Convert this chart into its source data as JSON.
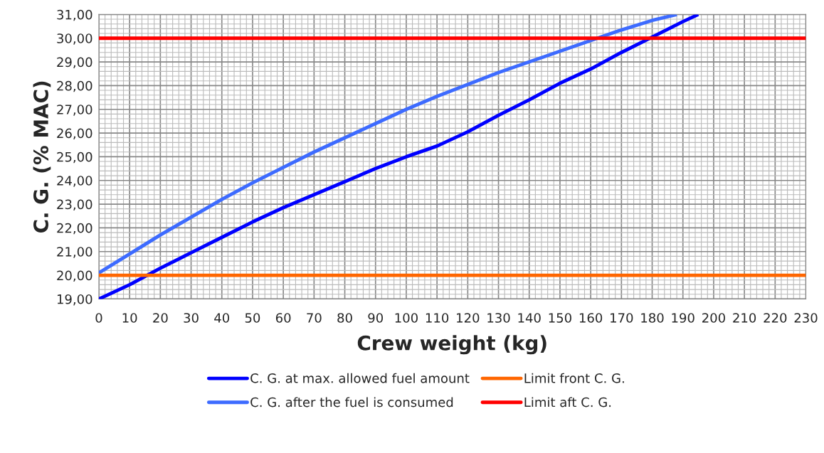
{
  "chart_data": {
    "type": "line",
    "xlabel": "Crew weight (kg)",
    "ylabel": "C. G. (% MAC)",
    "xlim": [
      0,
      230
    ],
    "xticks": [
      0,
      10,
      20,
      30,
      40,
      50,
      60,
      70,
      80,
      90,
      100,
      110,
      120,
      130,
      140,
      150,
      160,
      170,
      180,
      190,
      200,
      210,
      220,
      230
    ],
    "ylim": [
      19,
      31
    ],
    "yticks": [
      {
        "value": 19,
        "label": "19,00"
      },
      {
        "value": 20,
        "label": "20,00"
      },
      {
        "value": 21,
        "label": "21,00"
      },
      {
        "value": 22,
        "label": "22,00"
      },
      {
        "value": 23,
        "label": "23,00"
      },
      {
        "value": 24,
        "label": "24,00"
      },
      {
        "value": 25,
        "label": "25,00"
      },
      {
        "value": 26,
        "label": "26,00"
      },
      {
        "value": 27,
        "label": "27,00"
      },
      {
        "value": 28,
        "label": "28,00"
      },
      {
        "value": 29,
        "label": "29,00"
      },
      {
        "value": 30,
        "label": "30,00"
      },
      {
        "value": 31,
        "label": "31,00"
      }
    ],
    "grid": true,
    "legend": "bottom",
    "marker": "none",
    "line_style": "solid",
    "series": [
      {
        "name": "C. G. at max. allowed fuel amount",
        "color": "#0000ff",
        "x": [
          0,
          10,
          20,
          30,
          40,
          50,
          60,
          70,
          80,
          90,
          100,
          110,
          120,
          130,
          140,
          150,
          160,
          170,
          180,
          190,
          195
        ],
        "values": [
          19.0,
          19.6,
          20.3,
          20.95,
          21.6,
          22.25,
          22.85,
          23.4,
          23.95,
          24.5,
          25.0,
          25.45,
          26.05,
          26.75,
          27.4,
          28.1,
          28.7,
          29.4,
          30.05,
          30.7,
          31.0
        ]
      },
      {
        "name": "C. G. after the fuel is consumed",
        "color": "#3d6bff",
        "x": [
          0,
          10,
          20,
          30,
          40,
          50,
          60,
          70,
          80,
          90,
          100,
          110,
          120,
          130,
          140,
          150,
          160,
          170,
          180,
          188
        ],
        "values": [
          20.1,
          20.9,
          21.7,
          22.45,
          23.2,
          23.9,
          24.55,
          25.2,
          25.8,
          26.4,
          27.0,
          27.55,
          28.05,
          28.55,
          29.0,
          29.45,
          29.9,
          30.35,
          30.75,
          31.0
        ]
      },
      {
        "name": "Limit front C. G.",
        "color": "#ff6600",
        "x": [
          0,
          230
        ],
        "values": [
          20,
          20
        ]
      },
      {
        "name": "Limit aft C. G.",
        "color": "#ff0000",
        "x": [
          0,
          230
        ],
        "values": [
          30,
          30
        ]
      }
    ]
  }
}
